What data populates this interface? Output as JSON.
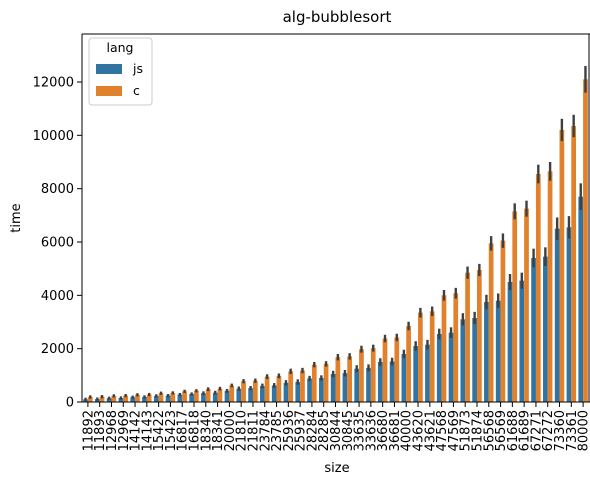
{
  "chart_data": {
    "type": "bar",
    "title": "alg-bubblesort",
    "xlabel": "size",
    "ylabel": "time",
    "ylim": [
      0,
      13800
    ],
    "yticks": [
      0,
      2000,
      4000,
      6000,
      8000,
      10000,
      12000
    ],
    "grid": false,
    "legend": {
      "title": "lang",
      "placement": "top-left"
    },
    "categories": [
      "11892",
      "11893",
      "12968",
      "12969",
      "14142",
      "14143",
      "15422",
      "15423",
      "16817",
      "16818",
      "18340",
      "18341",
      "20000",
      "21810",
      "21811",
      "23784",
      "23785",
      "25936",
      "25937",
      "28284",
      "28285",
      "30844",
      "30845",
      "33635",
      "33636",
      "36680",
      "36681",
      "40000",
      "43620",
      "43621",
      "47568",
      "47569",
      "51873",
      "51874",
      "56568",
      "56569",
      "61688",
      "61689",
      "67271",
      "67272",
      "73360",
      "73361",
      "80000"
    ],
    "series": [
      {
        "name": "js",
        "color": "#3274a1",
        "values": [
          100,
          110,
          140,
          150,
          180,
          190,
          230,
          240,
          280,
          300,
          330,
          350,
          420,
          500,
          520,
          600,
          620,
          720,
          750,
          880,
          900,
          1050,
          1080,
          1250,
          1280,
          1500,
          1520,
          1800,
          2100,
          2150,
          2550,
          2600,
          3100,
          3150,
          3750,
          3800,
          4500,
          4550,
          5400,
          5450,
          6500,
          6550,
          7700
        ],
        "error": [
          60,
          60,
          60,
          60,
          60,
          60,
          60,
          60,
          60,
          60,
          70,
          70,
          70,
          80,
          80,
          90,
          90,
          100,
          100,
          100,
          100,
          120,
          120,
          130,
          130,
          140,
          140,
          160,
          180,
          180,
          200,
          200,
          230,
          230,
          270,
          270,
          300,
          300,
          350,
          350,
          420,
          420,
          500
        ]
      },
      {
        "name": "c",
        "color": "#e1812c",
        "values": [
          190,
          200,
          230,
          240,
          270,
          280,
          330,
          340,
          400,
          420,
          480,
          500,
          620,
          780,
          800,
          950,
          980,
          1150,
          1180,
          1400,
          1430,
          1680,
          1710,
          1980,
          2020,
          2380,
          2420,
          2850,
          3350,
          3400,
          4000,
          4080,
          4850,
          4950,
          5950,
          6050,
          7150,
          7250,
          8550,
          8650,
          10200,
          10350,
          12100
        ],
        "error": [
          60,
          60,
          60,
          60,
          60,
          60,
          60,
          60,
          60,
          60,
          70,
          70,
          70,
          80,
          80,
          90,
          90,
          100,
          100,
          100,
          100,
          120,
          120,
          130,
          130,
          140,
          140,
          160,
          180,
          180,
          200,
          200,
          230,
          230,
          270,
          270,
          300,
          300,
          350,
          350,
          420,
          420,
          500
        ]
      }
    ]
  }
}
